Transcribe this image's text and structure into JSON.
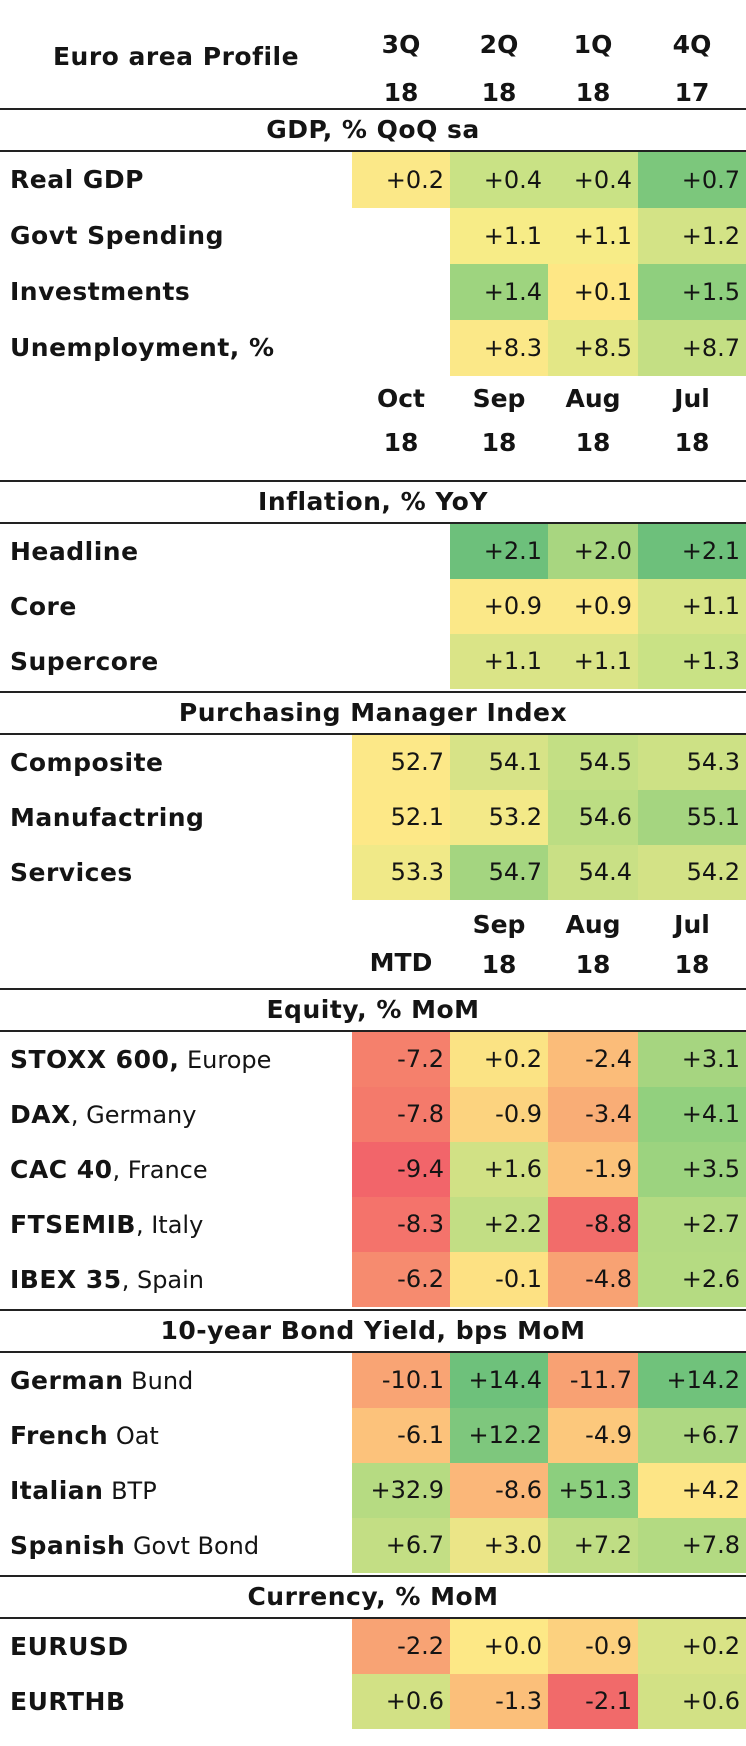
{
  "title": "Euro area Profile",
  "header1": {
    "top": [
      "3Q",
      "2Q",
      "1Q",
      "4Q"
    ],
    "bottom": [
      "18",
      "18",
      "18",
      "17"
    ]
  },
  "gdp": {
    "heading": "GDP, % QoQ sa",
    "rows": [
      {
        "label": "Real GDP",
        "values": [
          "+0.2",
          "+0.4",
          "+0.4",
          "+0.7"
        ],
        "colors": [
          "#fbe888",
          "#c9e285",
          "#c9e285",
          "#7cc77c"
        ]
      },
      {
        "label": "Govt Spending",
        "values": [
          "",
          "+1.1",
          "+1.1",
          "+1.2"
        ],
        "colors": [
          "#ffffff",
          "#f7ec87",
          "#f7ec87",
          "#d3e386"
        ]
      },
      {
        "label": "Investments",
        "values": [
          "",
          "+1.4",
          "+0.1",
          "+1.5"
        ],
        "colors": [
          "#ffffff",
          "#9ed47f",
          "#fee785",
          "#8fcf7e"
        ]
      },
      {
        "label": "Unemployment, %",
        "values": [
          "",
          "+8.3",
          "+8.5",
          "+8.7"
        ],
        "colors": [
          "#ffffff",
          "#fbe888",
          "#e3e786",
          "#c4df84"
        ]
      }
    ]
  },
  "header2": {
    "top": [
      "Oct",
      "Sep",
      "Aug",
      "Jul"
    ],
    "bottom": [
      "18",
      "18",
      "18",
      "18"
    ]
  },
  "inflation": {
    "heading": "Inflation, % YoY",
    "rows": [
      {
        "label": "Headline",
        "values": [
          "",
          "+2.1",
          "+2.0",
          "+2.1"
        ],
        "colors": [
          "#ffffff",
          "#6dc07b",
          "#a8d680",
          "#6dc07b"
        ]
      },
      {
        "label": "Core",
        "values": [
          "",
          "+0.9",
          "+0.9",
          "+1.1"
        ],
        "colors": [
          "#ffffff",
          "#fbe888",
          "#fbe888",
          "#d7e487"
        ]
      },
      {
        "label": "Supercore",
        "values": [
          "",
          "+1.1",
          "+1.1",
          "+1.3"
        ],
        "colors": [
          "#ffffff",
          "#dae487",
          "#dae487",
          "#c9e285"
        ]
      }
    ]
  },
  "pmi": {
    "heading": "Purchasing Manager Index",
    "rows": [
      {
        "label": "Composite",
        "values": [
          "52.7",
          "54.1",
          "54.5",
          "54.3"
        ],
        "colors": [
          "#fce888",
          "#d7e387",
          "#c3df84",
          "#cde185"
        ]
      },
      {
        "label": "Manufactring",
        "values": [
          "52.1",
          "53.2",
          "54.6",
          "55.1"
        ],
        "colors": [
          "#fde887",
          "#f3e988",
          "#bcdd83",
          "#a5d580"
        ]
      },
      {
        "label": "Services",
        "values": [
          "53.3",
          "54.7",
          "54.4",
          "54.2"
        ],
        "colors": [
          "#f0e988",
          "#a4d580",
          "#c9e085",
          "#d3e286"
        ]
      }
    ]
  },
  "header3": {
    "single": "MTD",
    "top": [
      "Sep",
      "Aug",
      "Jul"
    ],
    "bottom": [
      "18",
      "18",
      "18"
    ]
  },
  "equity": {
    "heading": "Equity, % MoM",
    "rows": [
      {
        "label_bold": "STOXX 600,",
        "label_reg": " Europe",
        "values": [
          "-7.2",
          "+0.2",
          "-2.4",
          "+3.1"
        ],
        "colors": [
          "#f5806c",
          "#fbe384",
          "#fbbc79",
          "#a6d580"
        ]
      },
      {
        "label_bold": "DAX",
        "label_reg": ", Germany",
        "values": [
          "-7.8",
          "-0.9",
          "-3.4",
          "+4.1"
        ],
        "colors": [
          "#f47a6b",
          "#fcd37f",
          "#f9ad76",
          "#92d07e"
        ]
      },
      {
        "label_bold": "CAC 40",
        "label_reg": ", France",
        "values": [
          "-9.4",
          "+1.6",
          "-1.9",
          "+3.5"
        ],
        "colors": [
          "#f2656a",
          "#d1e185",
          "#fbc27a",
          "#9cd37f"
        ]
      },
      {
        "label_bold": "FTSEMIB",
        "label_reg": ", Italy",
        "values": [
          "-8.3",
          "+2.2",
          "-8.8",
          "+2.7"
        ],
        "colors": [
          "#f4736b",
          "#c2de84",
          "#f26c6a",
          "#b3da82"
        ]
      },
      {
        "label_bold": "IBEX 35",
        "label_reg": ", Spain",
        "values": [
          "-6.2",
          "-0.1",
          "-4.8",
          "+2.6"
        ],
        "colors": [
          "#f68b6f",
          "#fde183",
          "#f8a273",
          "#b5db82"
        ]
      }
    ]
  },
  "bonds": {
    "heading": "10-year Bond Yield, bps MoM",
    "rows": [
      {
        "label_bold": "German",
        "label_reg": " Bund",
        "values": [
          "-10.1",
          "+14.4",
          "-11.7",
          "+14.2"
        ],
        "colors": [
          "#f9a474",
          "#6ec17b",
          "#f8a173",
          "#70c27b"
        ]
      },
      {
        "label_bold": "French",
        "label_reg": " Oat",
        "values": [
          "-6.1",
          "+12.2",
          "-4.9",
          "+6.7"
        ],
        "colors": [
          "#fcc27b",
          "#7ec77d",
          "#fcc87c",
          "#aed882"
        ]
      },
      {
        "label_bold": "Italian",
        "label_reg": " BTP",
        "values": [
          "+32.9",
          "-8.6",
          "+51.3",
          "+4.2"
        ],
        "colors": [
          "#b6db82",
          "#fbb779",
          "#8ccf7e",
          "#fde586"
        ]
      },
      {
        "label_bold": "Spanish",
        "label_reg": " Govt Bond",
        "values": [
          "+6.7",
          "+3.0",
          "+7.2",
          "+7.8"
        ],
        "colors": [
          "#c3de84",
          "#ebe587",
          "#bfdd84",
          "#b3da82"
        ]
      }
    ]
  },
  "currency": {
    "heading": "Currency, % MoM",
    "rows": [
      {
        "label_bold": "EURUSD",
        "label_reg": "",
        "values": [
          "-2.2",
          "+0.0",
          "-0.9",
          "+0.2"
        ],
        "colors": [
          "#f8a374",
          "#fde886",
          "#fcd17f",
          "#d9e386"
        ]
      },
      {
        "label_bold": "EURTHB",
        "label_reg": "",
        "values": [
          "+0.6",
          "-1.3",
          "-2.1",
          "+0.6"
        ],
        "colors": [
          "#d2e185",
          "#fbbf7a",
          "#f16a6a",
          "#d2e185"
        ]
      }
    ]
  }
}
